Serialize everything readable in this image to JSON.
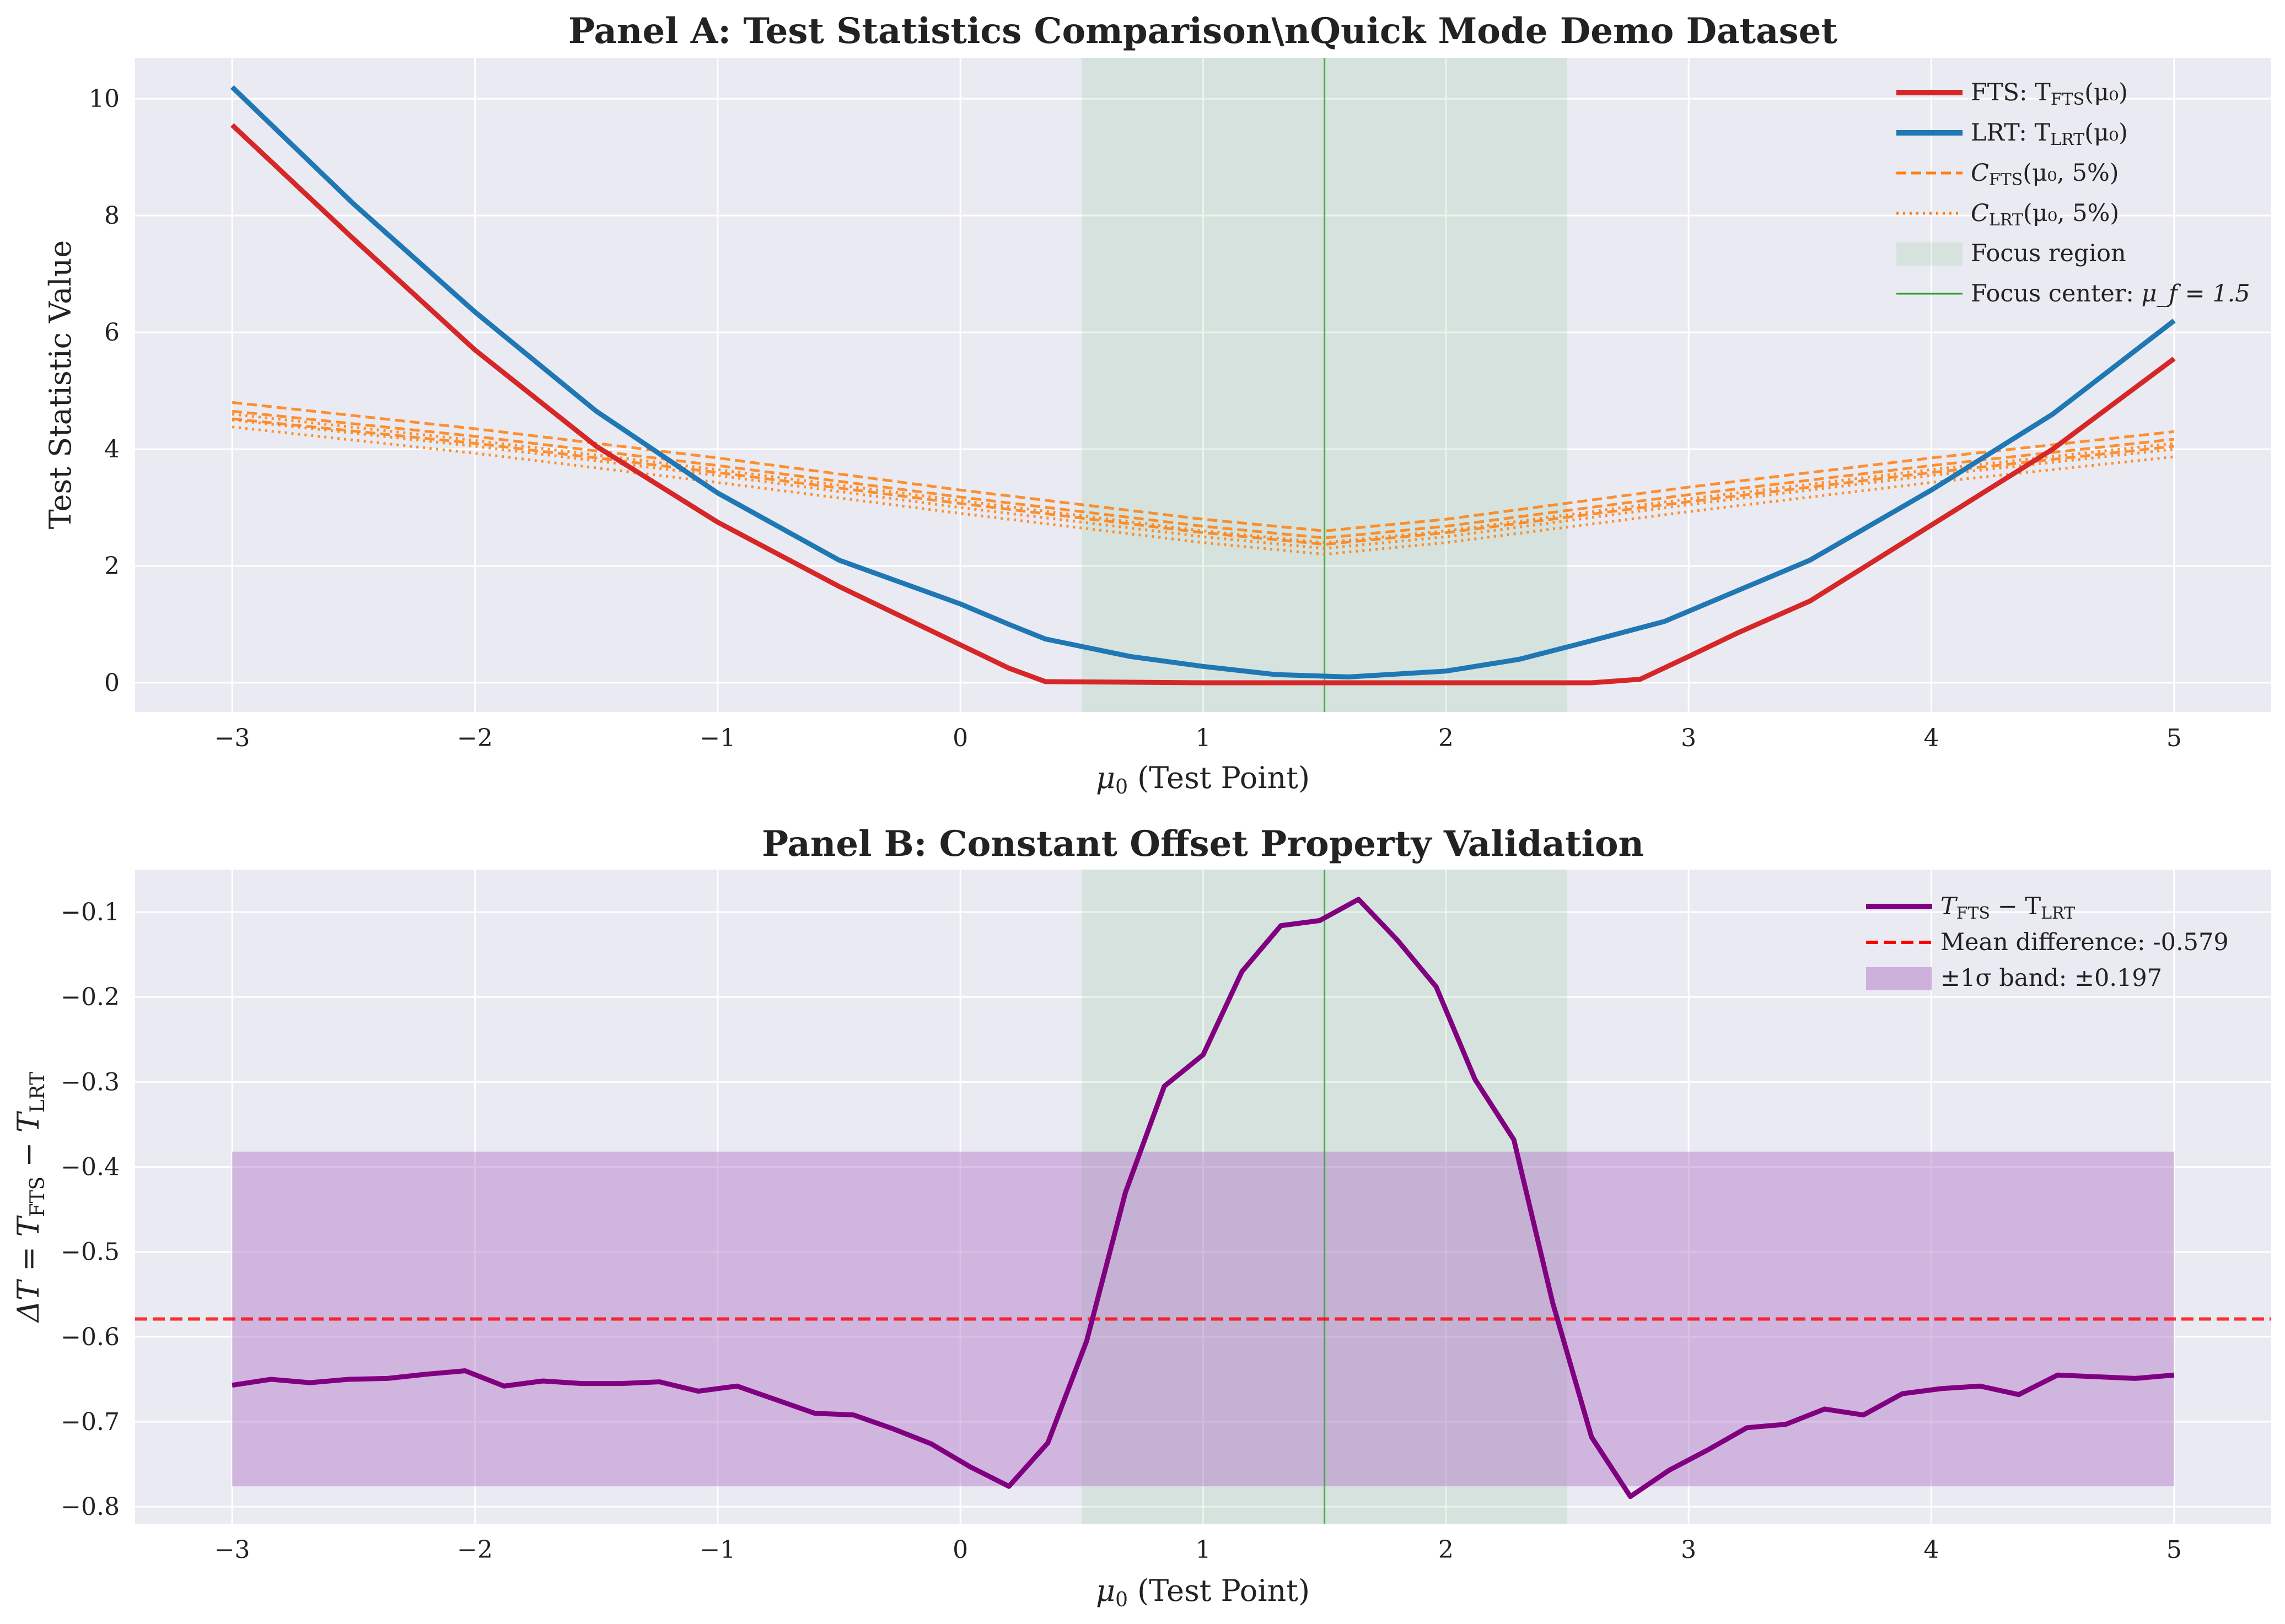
{
  "colors": {
    "fts": "#d62728",
    "lrt": "#1f77b4",
    "critical": "#ff7f0e",
    "focus_region": "#2ca02c",
    "focus_center": "#2ca02c",
    "difference": "#800080",
    "mean_difference": "#ff0000",
    "sigma_band": "#b275c8",
    "plot_background": "#eaeaf2"
  },
  "chart_data": [
    {
      "type": "line",
      "title": "Panel A: Test Statistics Comparison\\nQuick Mode Demo Dataset",
      "xlabel": "μ₀ (Test Point)",
      "ylabel": "Test Statistic Value",
      "xlim": [
        -3.4,
        5.4
      ],
      "ylim": [
        -0.5,
        10.7
      ],
      "grid": true,
      "legend_position": "top-right",
      "xticks": [
        -3,
        -2,
        -1,
        0,
        1,
        2,
        3,
        4,
        5
      ],
      "xtick_labels": [
        "−3",
        "−2",
        "−1",
        "0",
        "1",
        "2",
        "3",
        "4",
        "5"
      ],
      "yticks": [
        0,
        2,
        4,
        6,
        8,
        10
      ],
      "ytick_labels": [
        "0",
        "2",
        "4",
        "6",
        "8",
        "10"
      ],
      "focus_region": [
        0.5,
        2.5
      ],
      "focus_center": 1.5,
      "series": [
        {
          "name": "FTS: T_FTS(μ₀)",
          "legend_main": "FTS: T",
          "legend_sub": "FTS",
          "legend_tail": "(μ₀)",
          "style": "solid",
          "x": [
            -3,
            -2.5,
            -2,
            -1.5,
            -1,
            -0.5,
            0,
            0.2,
            0.35,
            1,
            1.5,
            2,
            2.6,
            2.8,
            3,
            3.2,
            3.5,
            4,
            4.5,
            5
          ],
          "y": [
            9.55,
            7.6,
            5.7,
            4.05,
            2.75,
            1.65,
            0.65,
            0.25,
            0.02,
            0,
            0,
            0,
            0,
            0.06,
            0.45,
            0.85,
            1.4,
            2.7,
            4.0,
            5.55
          ]
        },
        {
          "name": "LRT: T_LRT(μ₀)",
          "legend_main": "LRT: T",
          "legend_sub": "LRT",
          "legend_tail": "(μ₀)",
          "style": "solid",
          "x": [
            -3,
            -2.5,
            -2,
            -1.5,
            -1,
            -0.5,
            0,
            0.2,
            0.35,
            0.7,
            1,
            1.3,
            1.6,
            2,
            2.3,
            2.6,
            2.9,
            3.1,
            3.5,
            4,
            4.5,
            5
          ],
          "y": [
            10.2,
            8.2,
            6.35,
            4.65,
            3.25,
            2.1,
            1.35,
            1.0,
            0.75,
            0.45,
            0.28,
            0.14,
            0.1,
            0.2,
            0.4,
            0.72,
            1.05,
            1.4,
            2.1,
            3.3,
            4.6,
            6.2
          ]
        },
        {
          "name": "C_FTS(μ₀, 5%)",
          "legend_main": "C",
          "legend_sub": "FTS",
          "legend_tail": "(μ₀, 5%)",
          "style": "dashed",
          "lines": [
            {
              "x": [
                -3,
                -2,
                -1,
                0,
                1,
                1.5,
                2,
                3,
                4,
                5
              ],
              "y": [
                4.8,
                4.35,
                3.85,
                3.3,
                2.8,
                2.6,
                2.8,
                3.35,
                3.85,
                4.3
              ]
            },
            {
              "x": [
                -3,
                -2,
                -1,
                0,
                1,
                1.5,
                2,
                3,
                4,
                5
              ],
              "y": [
                4.65,
                4.22,
                3.72,
                3.18,
                2.68,
                2.48,
                2.68,
                3.22,
                3.72,
                4.17
              ]
            },
            {
              "x": [
                -3,
                -2,
                -1,
                0,
                1,
                1.5,
                2,
                3,
                4,
                5
              ],
              "y": [
                4.52,
                4.1,
                3.6,
                3.07,
                2.57,
                2.37,
                2.57,
                3.1,
                3.6,
                4.05
              ]
            }
          ]
        },
        {
          "name": "C_LRT(μ₀, 5%)",
          "legend_main": "C",
          "legend_sub": "LRT",
          "legend_tail": "(μ₀, 5%)",
          "style": "dotted",
          "lines": [
            {
              "x": [
                -3,
                -2,
                -1,
                0,
                1,
                1.5,
                2,
                3,
                4,
                5
              ],
              "y": [
                4.6,
                4.15,
                3.65,
                3.12,
                2.6,
                2.4,
                2.6,
                3.15,
                3.65,
                4.1
              ]
            },
            {
              "x": [
                -3,
                -2,
                -1,
                0,
                1,
                1.5,
                2,
                3,
                4,
                5
              ],
              "y": [
                4.5,
                4.05,
                3.55,
                3.0,
                2.5,
                2.3,
                2.5,
                3.05,
                3.55,
                4.0
              ]
            },
            {
              "x": [
                -3,
                -2,
                -1,
                0,
                1,
                1.5,
                2,
                3,
                4,
                5
              ],
              "y": [
                4.38,
                3.93,
                3.43,
                2.9,
                2.4,
                2.2,
                2.4,
                2.93,
                3.43,
                3.87
              ]
            }
          ]
        }
      ],
      "legend_extra": [
        {
          "name": "Focus region"
        },
        {
          "name": "Focus center: μ_f = 1.5",
          "legend_main": "Focus center: ",
          "legend_tail": "μ_f = 1.5"
        }
      ]
    },
    {
      "type": "line",
      "title": "Panel B: Constant Offset Property Validation",
      "xlabel": "μ₀ (Test Point)",
      "ylabel": "ΔT = T_FTS − T_LRT",
      "xlim": [
        -3.4,
        5.4
      ],
      "ylim": [
        -0.82,
        -0.05
      ],
      "grid": true,
      "legend_position": "top-right",
      "xticks": [
        -3,
        -2,
        -1,
        0,
        1,
        2,
        3,
        4,
        5
      ],
      "xtick_labels": [
        "−3",
        "−2",
        "−1",
        "0",
        "1",
        "2",
        "3",
        "4",
        "5"
      ],
      "yticks": [
        -0.8,
        -0.7,
        -0.6,
        -0.5,
        -0.4,
        -0.3,
        -0.2,
        -0.1
      ],
      "ytick_labels": [
        "−0.8",
        "−0.7",
        "−0.6",
        "−0.5",
        "−0.4",
        "−0.3",
        "−0.2",
        "−0.1"
      ],
      "focus_region": [
        0.5,
        2.5
      ],
      "focus_center": 1.5,
      "mean_difference": -0.579,
      "sigma": 0.197,
      "series": [
        {
          "name": "T_FTS − T_LRT",
          "x": [
            -3,
            -2.84,
            -2.68,
            -2.52,
            -2.36,
            -2.2,
            -2.04,
            -1.88,
            -1.72,
            -1.56,
            -1.4,
            -1.24,
            -1.08,
            -0.92,
            -0.76,
            -0.6,
            -0.44,
            -0.28,
            -0.12,
            0.04,
            0.2,
            0.36,
            0.52,
            0.68,
            0.84,
            1.0,
            1.16,
            1.32,
            1.48,
            1.64,
            1.8,
            1.96,
            2.12,
            2.28,
            2.44,
            2.6,
            2.76,
            2.92,
            3.08,
            3.24,
            3.4,
            3.56,
            3.72,
            3.88,
            4.04,
            4.2,
            4.36,
            4.52,
            4.68,
            4.84,
            5.0
          ],
          "y": [
            -0.657,
            -0.65,
            -0.654,
            -0.65,
            -0.649,
            -0.644,
            -0.64,
            -0.658,
            -0.652,
            -0.655,
            -0.655,
            -0.653,
            -0.664,
            -0.658,
            -0.674,
            -0.69,
            -0.692,
            -0.708,
            -0.726,
            -0.753,
            -0.776,
            -0.725,
            -0.605,
            -0.43,
            -0.305,
            -0.268,
            -0.17,
            -0.116,
            -0.11,
            -0.085,
            -0.133,
            -0.188,
            -0.297,
            -0.368,
            -0.56,
            -0.718,
            -0.788,
            -0.757,
            -0.733,
            -0.707,
            -0.703,
            -0.685,
            -0.692,
            -0.667,
            -0.661,
            -0.658,
            -0.668,
            -0.645,
            -0.647,
            -0.649,
            -0.645
          ]
        }
      ],
      "legend": [
        {
          "name": "T_FTS − T_LRT",
          "legend_main": "T",
          "legend_sub": "FTS",
          "legend_mid": " − T",
          "legend_sub2": "LRT"
        },
        {
          "name": "Mean difference: -0.579"
        },
        {
          "name": "±1σ band: ±0.197"
        }
      ]
    }
  ]
}
